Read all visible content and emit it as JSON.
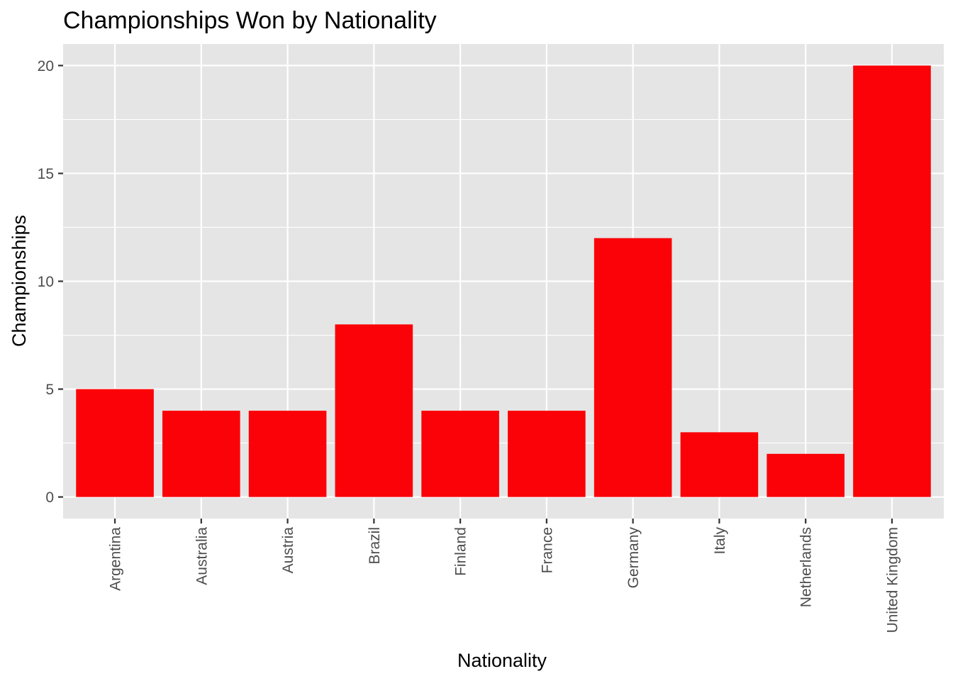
{
  "chart_data": {
    "type": "bar",
    "title": "Championships Won by Nationality",
    "xlabel": "Nationality",
    "ylabel": "Championships",
    "categories": [
      "Argentina",
      "Australia",
      "Austria",
      "Brazil",
      "Finland",
      "France",
      "Germany",
      "Italy",
      "Netherlands",
      "United Kingdom"
    ],
    "values": [
      5,
      4,
      4,
      8,
      4,
      4,
      12,
      3,
      2,
      20
    ],
    "ylim": [
      -1,
      21
    ],
    "yticks": [
      0,
      5,
      10,
      15,
      20
    ],
    "ytick_labels": [
      "0",
      "5",
      "10",
      "15",
      "20"
    ],
    "grid": true,
    "legend": "none",
    "colors": {
      "bar": "#fa0207",
      "panel_background": "#e5e5e5",
      "grid": "#ffffff",
      "tick_label": "#4d4d4d",
      "tick_mark": "#333333"
    }
  }
}
